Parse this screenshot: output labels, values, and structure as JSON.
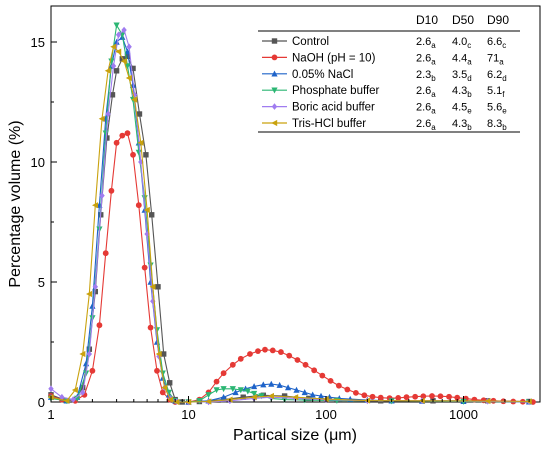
{
  "chart_data": {
    "type": "line",
    "xlabel": "Partical size (μm)",
    "ylabel": "Percentage volume (%)",
    "xscale": "log",
    "xlim": [
      1,
      3600
    ],
    "ylim": [
      0,
      16.5
    ],
    "xticks": [
      {
        "v": 1,
        "label": "1"
      },
      {
        "v": 10,
        "label": "10"
      },
      {
        "v": 100,
        "label": "100"
      },
      {
        "v": 1000,
        "label": "1000"
      }
    ],
    "yticks": [
      {
        "v": 0,
        "label": "0"
      },
      {
        "v": 5,
        "label": "5"
      },
      {
        "v": 10,
        "label": "10"
      },
      {
        "v": 15,
        "label": "15"
      }
    ],
    "legend_position": "top-right",
    "table_headers": [
      "D10",
      "D50",
      "D90"
    ],
    "series": [
      {
        "name": "Control",
        "color": "#555555",
        "marker": "square",
        "stats": [
          {
            "v": "2.6",
            "s": "a"
          },
          {
            "v": "4.0",
            "s": "c"
          },
          {
            "v": "6.6",
            "s": "c"
          }
        ],
        "points": [
          [
            1.0,
            0.3
          ],
          [
            1.3,
            0.05
          ],
          [
            1.5,
            0.1
          ],
          [
            1.7,
            0.6
          ],
          [
            1.9,
            2.2
          ],
          [
            2.1,
            4.6
          ],
          [
            2.3,
            7.8
          ],
          [
            2.55,
            11.0
          ],
          [
            2.8,
            12.8
          ],
          [
            3.0,
            13.8
          ],
          [
            3.3,
            14.3
          ],
          [
            3.6,
            14.4
          ],
          [
            3.95,
            13.9
          ],
          [
            4.4,
            12.0
          ],
          [
            4.9,
            10.3
          ],
          [
            5.4,
            7.8
          ],
          [
            6.0,
            4.8
          ],
          [
            6.6,
            2.0
          ],
          [
            7.3,
            0.8
          ],
          [
            8.0,
            0.1
          ],
          [
            9.0,
            0.0
          ],
          [
            12,
            0.02
          ],
          [
            18,
            0.1
          ],
          [
            25,
            0.2
          ],
          [
            35,
            0.28
          ],
          [
            50,
            0.25
          ],
          [
            75,
            0.15
          ],
          [
            120,
            0.08
          ],
          [
            250,
            0.05
          ],
          [
            600,
            0.05
          ],
          [
            1500,
            0.05
          ],
          [
            3000,
            0.02
          ]
        ]
      },
      {
        "name": "NaOH (pH = 10)",
        "color": "#e53935",
        "marker": "circle",
        "stats": [
          {
            "v": "2.6",
            "s": "a"
          },
          {
            "v": "4.4",
            "s": "a"
          },
          {
            "v": "71",
            "s": "a"
          }
        ],
        "points": [
          [
            1.0,
            0.25
          ],
          [
            1.2,
            0.1
          ],
          [
            1.5,
            0.05
          ],
          [
            1.75,
            0.3
          ],
          [
            2.0,
            1.3
          ],
          [
            2.25,
            3.2
          ],
          [
            2.5,
            6.2
          ],
          [
            2.75,
            8.8
          ],
          [
            3.0,
            10.8
          ],
          [
            3.3,
            11.1
          ],
          [
            3.6,
            11.2
          ],
          [
            3.95,
            10.3
          ],
          [
            4.35,
            8.2
          ],
          [
            4.8,
            5.6
          ],
          [
            5.3,
            3.1
          ],
          [
            5.9,
            1.3
          ],
          [
            6.5,
            0.4
          ],
          [
            7.3,
            0.1
          ],
          [
            8.0,
            0.0
          ],
          [
            10,
            0.0
          ],
          [
            12,
            0.1
          ],
          [
            14,
            0.4
          ],
          [
            16,
            0.85
          ],
          [
            18,
            1.2
          ],
          [
            21,
            1.55
          ],
          [
            24,
            1.8
          ],
          [
            28,
            2.0
          ],
          [
            32,
            2.12
          ],
          [
            36,
            2.18
          ],
          [
            41,
            2.15
          ],
          [
            47,
            2.08
          ],
          [
            54,
            1.93
          ],
          [
            62,
            1.75
          ],
          [
            71,
            1.55
          ],
          [
            82,
            1.32
          ],
          [
            94,
            1.1
          ],
          [
            108,
            0.88
          ],
          [
            124,
            0.68
          ],
          [
            143,
            0.52
          ],
          [
            165,
            0.38
          ],
          [
            190,
            0.28
          ],
          [
            218,
            0.22
          ],
          [
            250,
            0.18
          ],
          [
            290,
            0.16
          ],
          [
            335,
            0.17
          ],
          [
            385,
            0.2
          ],
          [
            445,
            0.22
          ],
          [
            510,
            0.24
          ],
          [
            590,
            0.25
          ],
          [
            680,
            0.24
          ],
          [
            785,
            0.22
          ],
          [
            900,
            0.18
          ],
          [
            1040,
            0.14
          ],
          [
            1200,
            0.1
          ],
          [
            1400,
            0.07
          ],
          [
            1650,
            0.05
          ],
          [
            1950,
            0.03
          ],
          [
            2300,
            0.02
          ],
          [
            2700,
            0.01
          ],
          [
            3200,
            0.0
          ]
        ]
      },
      {
        "name": "0.05% NaCl",
        "color": "#1e63c9",
        "marker": "triangle-up",
        "stats": [
          {
            "v": "2.3",
            "s": "b"
          },
          {
            "v": "3.5",
            "s": "d"
          },
          {
            "v": "6.2",
            "s": "d"
          }
        ],
        "points": [
          [
            1.0,
            0.2
          ],
          [
            1.3,
            0.05
          ],
          [
            1.55,
            0.2
          ],
          [
            1.8,
            1.6
          ],
          [
            2.0,
            4.0
          ],
          [
            2.25,
            8.2
          ],
          [
            2.5,
            11.8
          ],
          [
            2.75,
            14.0
          ],
          [
            3.0,
            15.0
          ],
          [
            3.3,
            15.2
          ],
          [
            3.6,
            14.6
          ],
          [
            3.95,
            13.2
          ],
          [
            4.35,
            10.8
          ],
          [
            4.8,
            8.0
          ],
          [
            5.3,
            5.0
          ],
          [
            5.9,
            2.5
          ],
          [
            6.5,
            1.0
          ],
          [
            7.2,
            0.3
          ],
          [
            8.0,
            0.05
          ],
          [
            10,
            0.0
          ],
          [
            14,
            0.05
          ],
          [
            18,
            0.2
          ],
          [
            22,
            0.4
          ],
          [
            26,
            0.55
          ],
          [
            30,
            0.65
          ],
          [
            35,
            0.72
          ],
          [
            40,
            0.75
          ],
          [
            46,
            0.7
          ],
          [
            53,
            0.6
          ],
          [
            61,
            0.5
          ],
          [
            70,
            0.4
          ],
          [
            80,
            0.3
          ],
          [
            92,
            0.25
          ],
          [
            106,
            0.2
          ],
          [
            125,
            0.15
          ],
          [
            150,
            0.12
          ],
          [
            200,
            0.08
          ],
          [
            300,
            0.05
          ],
          [
            500,
            0.04
          ],
          [
            1000,
            0.03
          ],
          [
            3000,
            0.01
          ]
        ]
      },
      {
        "name": "Phosphate buffer",
        "color": "#2bb673",
        "marker": "triangle-down",
        "stats": [
          {
            "v": "2.6",
            "s": "a"
          },
          {
            "v": "4.3",
            "s": "b"
          },
          {
            "v": "5.1",
            "s": "f"
          }
        ],
        "points": [
          [
            1.0,
            0.15
          ],
          [
            1.3,
            0.05
          ],
          [
            1.55,
            0.15
          ],
          [
            1.8,
            1.2
          ],
          [
            2.0,
            3.5
          ],
          [
            2.25,
            7.2
          ],
          [
            2.5,
            11.2
          ],
          [
            2.75,
            14.2
          ],
          [
            3.0,
            15.7
          ],
          [
            3.3,
            15.3
          ],
          [
            3.6,
            14.0
          ],
          [
            3.95,
            12.6
          ],
          [
            4.35,
            10.4
          ],
          [
            4.8,
            8.5
          ],
          [
            5.3,
            5.7
          ],
          [
            5.9,
            3.0
          ],
          [
            6.5,
            1.2
          ],
          [
            7.2,
            0.4
          ],
          [
            8.0,
            0.05
          ],
          [
            10,
            0.0
          ],
          [
            12,
            0.05
          ],
          [
            14,
            0.3
          ],
          [
            16,
            0.5
          ],
          [
            18,
            0.55
          ],
          [
            21,
            0.55
          ],
          [
            24,
            0.5
          ],
          [
            27,
            0.45
          ],
          [
            30,
            0.35
          ],
          [
            34,
            0.25
          ],
          [
            40,
            0.15
          ],
          [
            50,
            0.1
          ],
          [
            70,
            0.08
          ],
          [
            120,
            0.06
          ],
          [
            300,
            0.04
          ],
          [
            1000,
            0.02
          ],
          [
            3000,
            0.0
          ]
        ]
      },
      {
        "name": "Boric acid buffer",
        "color": "#a07cf0",
        "marker": "diamond",
        "stats": [
          {
            "v": "2.6",
            "s": "a"
          },
          {
            "v": "4.5",
            "s": "e"
          },
          {
            "v": "5.6",
            "s": "e"
          }
        ],
        "points": [
          [
            1.0,
            0.55
          ],
          [
            1.2,
            0.2
          ],
          [
            1.45,
            0.1
          ],
          [
            1.7,
            0.4
          ],
          [
            1.9,
            2.0
          ],
          [
            2.1,
            4.8
          ],
          [
            2.35,
            8.6
          ],
          [
            2.6,
            12.0
          ],
          [
            2.85,
            14.0
          ],
          [
            3.1,
            15.3
          ],
          [
            3.4,
            15.5
          ],
          [
            3.7,
            14.8
          ],
          [
            4.05,
            12.8
          ],
          [
            4.5,
            10.0
          ],
          [
            5.0,
            7.0
          ],
          [
            5.5,
            4.2
          ],
          [
            6.1,
            1.9
          ],
          [
            6.7,
            0.6
          ],
          [
            7.4,
            0.15
          ],
          [
            8.2,
            0.02
          ],
          [
            10,
            0.0
          ],
          [
            14,
            0.0
          ],
          [
            20,
            0.05
          ],
          [
            30,
            0.15
          ],
          [
            40,
            0.2
          ],
          [
            60,
            0.15
          ],
          [
            100,
            0.1
          ],
          [
            200,
            0.05
          ],
          [
            500,
            0.05
          ],
          [
            1500,
            0.03
          ],
          [
            3000,
            0.01
          ]
        ]
      },
      {
        "name": "Tris-HCl buffer",
        "color": "#c9a20e",
        "marker": "triangle-left",
        "stats": [
          {
            "v": "2.6",
            "s": "a"
          },
          {
            "v": "4.3",
            "s": "b"
          },
          {
            "v": "8.3",
            "s": "b"
          }
        ],
        "points": [
          [
            1.0,
            0.2
          ],
          [
            1.3,
            0.05
          ],
          [
            1.5,
            0.5
          ],
          [
            1.7,
            2.0
          ],
          [
            1.9,
            4.5
          ],
          [
            2.1,
            8.2
          ],
          [
            2.35,
            11.8
          ],
          [
            2.6,
            13.8
          ],
          [
            2.85,
            14.8
          ],
          [
            3.1,
            14.6
          ],
          [
            3.4,
            14.2
          ],
          [
            3.7,
            13.5
          ],
          [
            4.05,
            12.6
          ],
          [
            4.5,
            10.8
          ],
          [
            5.0,
            8.0
          ],
          [
            5.5,
            4.8
          ],
          [
            6.1,
            2.0
          ],
          [
            6.7,
            0.6
          ],
          [
            7.4,
            0.1
          ],
          [
            8.2,
            0.0
          ],
          [
            10,
            0.0
          ],
          [
            14,
            0.02
          ],
          [
            20,
            0.1
          ],
          [
            30,
            0.2
          ],
          [
            40,
            0.25
          ],
          [
            60,
            0.2
          ],
          [
            100,
            0.12
          ],
          [
            200,
            0.06
          ],
          [
            500,
            0.05
          ],
          [
            1500,
            0.04
          ],
          [
            3000,
            0.02
          ]
        ]
      }
    ]
  }
}
